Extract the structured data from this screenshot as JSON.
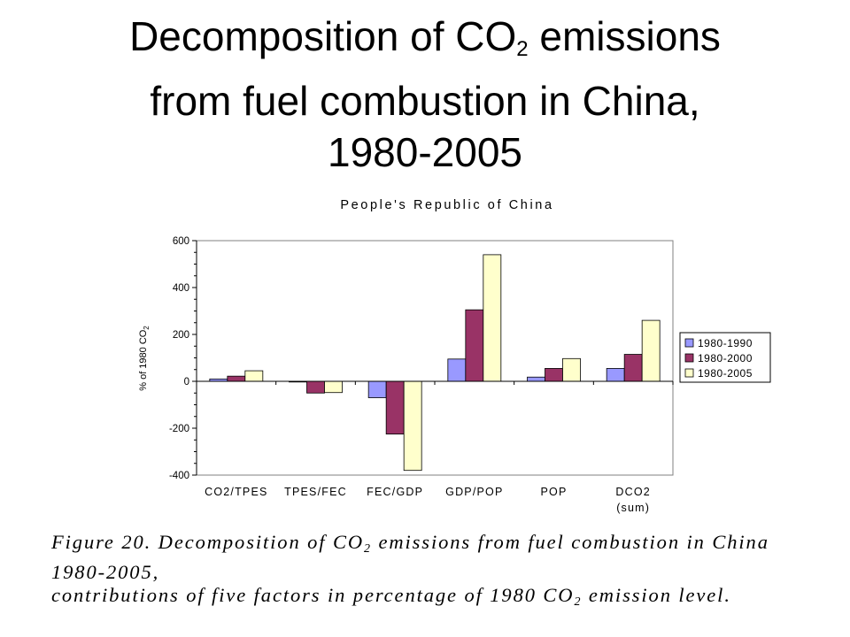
{
  "slide": {
    "title_part1": "Decomposition of CO",
    "title_sub": "2",
    "title_part2": " emissions",
    "title_line2": "from fuel combustion in China,",
    "title_line3": "1980-2005"
  },
  "chart_data": {
    "type": "bar",
    "title": "People's Republic of China",
    "ylabel": "% of 1980 CO",
    "ylabel_sub": "2",
    "ylim": [
      -400,
      600
    ],
    "yticks": [
      "600",
      "400",
      "200",
      "0",
      "-200",
      "-400"
    ],
    "categories": [
      "CO2/TPES",
      "TPES/FEC",
      "FEC/GDP",
      "GDP/POP",
      "POP",
      "DCO2"
    ],
    "category_sublabels": [
      "",
      "",
      "",
      "",
      "",
      "(sum)"
    ],
    "series": [
      {
        "name": "1980-1990",
        "color": "#9999FF",
        "values": [
          10,
          -3,
          -70,
          95,
          18,
          55
        ]
      },
      {
        "name": "1980-2000",
        "color": "#993366",
        "values": [
          22,
          -50,
          -225,
          305,
          55,
          115
        ]
      },
      {
        "name": "1980-2005",
        "color": "#FFFFCC",
        "values": [
          45,
          -48,
          -380,
          540,
          97,
          260
        ]
      }
    ],
    "legend_position": "right",
    "grid": false
  },
  "caption": {
    "part1": "Figure 20. Decomposition of CO",
    "sub1": "2",
    "part2": " emissions from fuel combustion in China 1980-2005,",
    "part3": "contributions of five factors in percentage of 1980 CO",
    "sub2": "2",
    "part4": " emission level."
  }
}
